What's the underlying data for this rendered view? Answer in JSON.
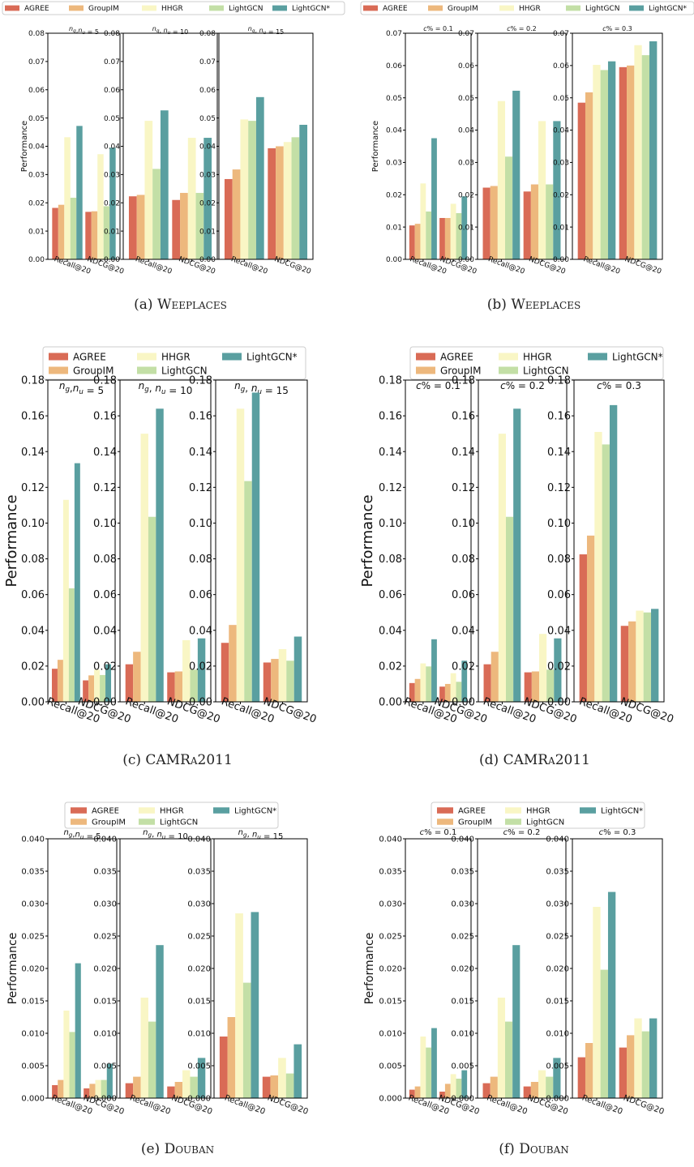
{
  "figure": {
    "series_names": [
      "AGREE",
      "GroupIM",
      "HHGR",
      "LightGCN",
      "LightGCN*"
    ],
    "series_colors": [
      "#d96b56",
      "#edb87d",
      "#f9f6c5",
      "#c3dfa6",
      "#5a9fa0"
    ],
    "categories": [
      "Recall@20",
      "NDCG@20"
    ],
    "y_label": "Performance",
    "captions": [
      "(a)",
      "Weeplaces",
      "(b)",
      "Weeplaces",
      "(c)",
      "CAMRa2011",
      "(d)",
      "CAMRa2011",
      "(e)",
      "Douban",
      "(f)",
      "Douban"
    ]
  },
  "chart_data": [
    {
      "id": "a",
      "type": "bar",
      "caption_label": "(a)",
      "caption_dataset": "Weeplaces",
      "ylabel": "Performance",
      "ylim": [
        0,
        0.08
      ],
      "yticks": [
        "0.00",
        "0.01",
        "0.02",
        "0.03",
        "0.04",
        "0.05",
        "0.06",
        "0.07",
        "0.08"
      ],
      "categories": [
        "Recall@20",
        "NDCG@20"
      ],
      "legend": "top-single-row",
      "panels": [
        {
          "title": "n_g,n_u = 5",
          "series": [
            {
              "name": "AGREE",
              "values": [
                0.0182,
                0.0168
              ]
            },
            {
              "name": "GroupIM",
              "values": [
                0.0193,
                0.017
              ]
            },
            {
              "name": "HHGR",
              "values": [
                0.0432,
                0.0372
              ]
            },
            {
              "name": "LightGCN",
              "values": [
                0.0218,
                0.0188
              ]
            },
            {
              "name": "LightGCN*",
              "values": [
                0.0472,
                0.0395
              ]
            }
          ]
        },
        {
          "title": "n_g, n_u = 10",
          "series": [
            {
              "name": "AGREE",
              "values": [
                0.0223,
                0.021
              ]
            },
            {
              "name": "GroupIM",
              "values": [
                0.0228,
                0.0235
              ]
            },
            {
              "name": "HHGR",
              "values": [
                0.049,
                0.043
              ]
            },
            {
              "name": "LightGCN",
              "values": [
                0.032,
                0.0235
              ]
            },
            {
              "name": "LightGCN*",
              "values": [
                0.0527,
                0.043
              ]
            }
          ]
        },
        {
          "title": "n_g, n_u = 15",
          "series": [
            {
              "name": "AGREE",
              "values": [
                0.0284,
                0.0393
              ]
            },
            {
              "name": "GroupIM",
              "values": [
                0.0318,
                0.04
              ]
            },
            {
              "name": "HHGR",
              "values": [
                0.0495,
                0.0415
              ]
            },
            {
              "name": "LightGCN",
              "values": [
                0.049,
                0.0432
              ]
            },
            {
              "name": "LightGCN*",
              "values": [
                0.0574,
                0.0476
              ]
            }
          ]
        }
      ]
    },
    {
      "id": "b",
      "type": "bar",
      "caption_label": "(b)",
      "caption_dataset": "Weeplaces",
      "ylabel": "Performance",
      "ylim": [
        0,
        0.07
      ],
      "yticks": [
        "0.00",
        "0.01",
        "0.02",
        "0.03",
        "0.04",
        "0.05",
        "0.06",
        "0.07"
      ],
      "categories": [
        "Recall@20",
        "NDCG@20"
      ],
      "legend": "top-single-row",
      "panels": [
        {
          "title": "c% = 0.1",
          "series": [
            {
              "name": "AGREE",
              "values": [
                0.0105,
                0.0128
              ]
            },
            {
              "name": "GroupIM",
              "values": [
                0.011,
                0.0128
              ]
            },
            {
              "name": "HHGR",
              "values": [
                0.0235,
                0.0172
              ]
            },
            {
              "name": "LightGCN",
              "values": [
                0.0148,
                0.0143
              ]
            },
            {
              "name": "LightGCN*",
              "values": [
                0.0375,
                0.0195
              ]
            }
          ]
        },
        {
          "title": "c% = 0.2",
          "series": [
            {
              "name": "AGREE",
              "values": [
                0.0222,
                0.021
              ]
            },
            {
              "name": "GroupIM",
              "values": [
                0.0227,
                0.0232
              ]
            },
            {
              "name": "HHGR",
              "values": [
                0.049,
                0.0428
              ]
            },
            {
              "name": "LightGCN",
              "values": [
                0.0318,
                0.0232
              ]
            },
            {
              "name": "LightGCN*",
              "values": [
                0.0522,
                0.0428
              ]
            }
          ]
        },
        {
          "title": "c% = 0.3",
          "series": [
            {
              "name": "AGREE",
              "values": [
                0.0485,
                0.0595
              ]
            },
            {
              "name": "GroupIM",
              "values": [
                0.0517,
                0.06
              ]
            },
            {
              "name": "HHGR",
              "values": [
                0.0602,
                0.0663
              ]
            },
            {
              "name": "LightGCN",
              "values": [
                0.0586,
                0.0632
              ]
            },
            {
              "name": "LightGCN*",
              "values": [
                0.0613,
                0.0675
              ]
            }
          ]
        }
      ]
    },
    {
      "id": "c",
      "type": "bar",
      "caption_label": "(c)",
      "caption_dataset": "CAMRa2011",
      "ylabel": "Performance",
      "ylim": [
        0,
        0.18
      ],
      "yticks": [
        "0.00",
        "0.02",
        "0.04",
        "0.06",
        "0.08",
        "0.10",
        "0.12",
        "0.14",
        "0.16",
        "0.18"
      ],
      "categories": [
        "Recall@20",
        "NDCG@20"
      ],
      "legend": "top-two-rows",
      "panels": [
        {
          "title": "n_g,n_u = 5",
          "series": [
            {
              "name": "AGREE",
              "values": [
                0.0185,
                0.012
              ]
            },
            {
              "name": "GroupIM",
              "values": [
                0.0235,
                0.0148
              ]
            },
            {
              "name": "HHGR",
              "values": [
                0.113,
                0.018
              ]
            },
            {
              "name": "LightGCN",
              "values": [
                0.0635,
                0.015
              ]
            },
            {
              "name": "LightGCN*",
              "values": [
                0.1335,
                0.021
              ]
            }
          ]
        },
        {
          "title": "n_g, n_u = 10",
          "series": [
            {
              "name": "AGREE",
              "values": [
                0.021,
                0.0165
              ]
            },
            {
              "name": "GroupIM",
              "values": [
                0.028,
                0.017
              ]
            },
            {
              "name": "HHGR",
              "values": [
                0.15,
                0.0345
              ]
            },
            {
              "name": "LightGCN",
              "values": [
                0.1035,
                0.018
              ]
            },
            {
              "name": "LightGCN*",
              "values": [
                0.164,
                0.0355
              ]
            }
          ]
        },
        {
          "title": "n_g, n_u = 15",
          "series": [
            {
              "name": "AGREE",
              "values": [
                0.033,
                0.022
              ]
            },
            {
              "name": "GroupIM",
              "values": [
                0.043,
                0.024
              ]
            },
            {
              "name": "HHGR",
              "values": [
                0.164,
                0.0295
              ]
            },
            {
              "name": "LightGCN",
              "values": [
                0.1235,
                0.023
              ]
            },
            {
              "name": "LightGCN*",
              "values": [
                0.173,
                0.0365
              ]
            }
          ]
        }
      ]
    },
    {
      "id": "d",
      "type": "bar",
      "caption_label": "(d)",
      "caption_dataset": "CAMRa2011",
      "ylabel": "Performance",
      "ylim": [
        0,
        0.18
      ],
      "yticks": [
        "0.00",
        "0.02",
        "0.04",
        "0.06",
        "0.08",
        "0.10",
        "0.12",
        "0.14",
        "0.16",
        "0.18"
      ],
      "categories": [
        "Recall@20",
        "NDCG@20"
      ],
      "legend": "top-two-rows",
      "panels": [
        {
          "title": "c% = 0.1",
          "series": [
            {
              "name": "AGREE",
              "values": [
                0.0105,
                0.0085
              ]
            },
            {
              "name": "GroupIM",
              "values": [
                0.0128,
                0.01
              ]
            },
            {
              "name": "HHGR",
              "values": [
                0.0215,
                0.016
              ]
            },
            {
              "name": "LightGCN",
              "values": [
                0.0198,
                0.0112
              ]
            },
            {
              "name": "LightGCN*",
              "values": [
                0.035,
                0.023
              ]
            }
          ]
        },
        {
          "title": "c% = 0.2",
          "series": [
            {
              "name": "AGREE",
              "values": [
                0.021,
                0.0165
              ]
            },
            {
              "name": "GroupIM",
              "values": [
                0.028,
                0.017
              ]
            },
            {
              "name": "HHGR",
              "values": [
                0.15,
                0.038
              ]
            },
            {
              "name": "LightGCN",
              "values": [
                0.1035,
                0.018
              ]
            },
            {
              "name": "LightGCN*",
              "values": [
                0.164,
                0.0355
              ]
            }
          ]
        },
        {
          "title": "c% = 0.3",
          "series": [
            {
              "name": "AGREE",
              "values": [
                0.0825,
                0.0425
              ]
            },
            {
              "name": "GroupIM",
              "values": [
                0.093,
                0.045
              ]
            },
            {
              "name": "HHGR",
              "values": [
                0.151,
                0.051
              ]
            },
            {
              "name": "LightGCN",
              "values": [
                0.144,
                0.05
              ]
            },
            {
              "name": "LightGCN*",
              "values": [
                0.166,
                0.052
              ]
            }
          ]
        }
      ]
    },
    {
      "id": "e",
      "type": "bar",
      "caption_label": "(e)",
      "caption_dataset": "Douban",
      "ylabel": "Performance",
      "ylim": [
        0,
        0.04
      ],
      "yticks": [
        "0.000",
        "0.005",
        "0.010",
        "0.015",
        "0.020",
        "0.025",
        "0.030",
        "0.035",
        "0.040"
      ],
      "categories": [
        "Recall@20",
        "NDCG@20"
      ],
      "legend": "top-two-rows",
      "panels": [
        {
          "title": "n_g,n_u = 5",
          "series": [
            {
              "name": "AGREE",
              "values": [
                0.002,
                0.0015
              ]
            },
            {
              "name": "GroupIM",
              "values": [
                0.0028,
                0.0022
              ]
            },
            {
              "name": "HHGR",
              "values": [
                0.0135,
                0.0028
              ]
            },
            {
              "name": "LightGCN",
              "values": [
                0.0102,
                0.0028
              ]
            },
            {
              "name": "LightGCN*",
              "values": [
                0.0208,
                0.0053
              ]
            }
          ]
        },
        {
          "title": "n_g, n_u = 10",
          "series": [
            {
              "name": "AGREE",
              "values": [
                0.0023,
                0.0018
              ]
            },
            {
              "name": "GroupIM",
              "values": [
                0.0033,
                0.0025
              ]
            },
            {
              "name": "HHGR",
              "values": [
                0.0155,
                0.0043
              ]
            },
            {
              "name": "LightGCN",
              "values": [
                0.0118,
                0.0033
              ]
            },
            {
              "name": "LightGCN*",
              "values": [
                0.0236,
                0.0062
              ]
            }
          ]
        },
        {
          "title": "n_g, n_u = 15",
          "series": [
            {
              "name": "AGREE",
              "values": [
                0.0095,
                0.0033
              ]
            },
            {
              "name": "GroupIM",
              "values": [
                0.0125,
                0.0035
              ]
            },
            {
              "name": "HHGR",
              "values": [
                0.0285,
                0.0062
              ]
            },
            {
              "name": "LightGCN",
              "values": [
                0.0178,
                0.0038
              ]
            },
            {
              "name": "LightGCN*",
              "values": [
                0.0287,
                0.0083
              ]
            }
          ]
        }
      ]
    },
    {
      "id": "f",
      "type": "bar",
      "caption_label": "(f)",
      "caption_dataset": "Douban",
      "ylabel": "Performance",
      "ylim": [
        0,
        0.04
      ],
      "yticks": [
        "0.000",
        "0.005",
        "0.010",
        "0.015",
        "0.020",
        "0.025",
        "0.030",
        "0.035",
        "0.040"
      ],
      "categories": [
        "Recall@20",
        "NDCG@20"
      ],
      "legend": "top-two-rows",
      "panels": [
        {
          "title": "c% = 0.1",
          "series": [
            {
              "name": "AGREE",
              "values": [
                0.0013,
                0.001
              ]
            },
            {
              "name": "GroupIM",
              "values": [
                0.0018,
                0.0022
              ]
            },
            {
              "name": "HHGR",
              "values": [
                0.0095,
                0.0037
              ]
            },
            {
              "name": "LightGCN",
              "values": [
                0.0078,
                0.003
              ]
            },
            {
              "name": "LightGCN*",
              "values": [
                0.0108,
                0.0043
              ]
            }
          ]
        },
        {
          "title": "c% = 0.2",
          "series": [
            {
              "name": "AGREE",
              "values": [
                0.0023,
                0.0018
              ]
            },
            {
              "name": "GroupIM",
              "values": [
                0.0033,
                0.0025
              ]
            },
            {
              "name": "HHGR",
              "values": [
                0.0155,
                0.0043
              ]
            },
            {
              "name": "LightGCN",
              "values": [
                0.0118,
                0.0033
              ]
            },
            {
              "name": "LightGCN*",
              "values": [
                0.0236,
                0.0062
              ]
            }
          ]
        },
        {
          "title": "c% = 0.3",
          "series": [
            {
              "name": "AGREE",
              "values": [
                0.0063,
                0.0078
              ]
            },
            {
              "name": "GroupIM",
              "values": [
                0.0085,
                0.0097
              ]
            },
            {
              "name": "HHGR",
              "values": [
                0.0295,
                0.0123
              ]
            },
            {
              "name": "LightGCN",
              "values": [
                0.0198,
                0.0103
              ]
            },
            {
              "name": "LightGCN*",
              "values": [
                0.0318,
                0.0123
              ]
            }
          ]
        }
      ]
    }
  ]
}
